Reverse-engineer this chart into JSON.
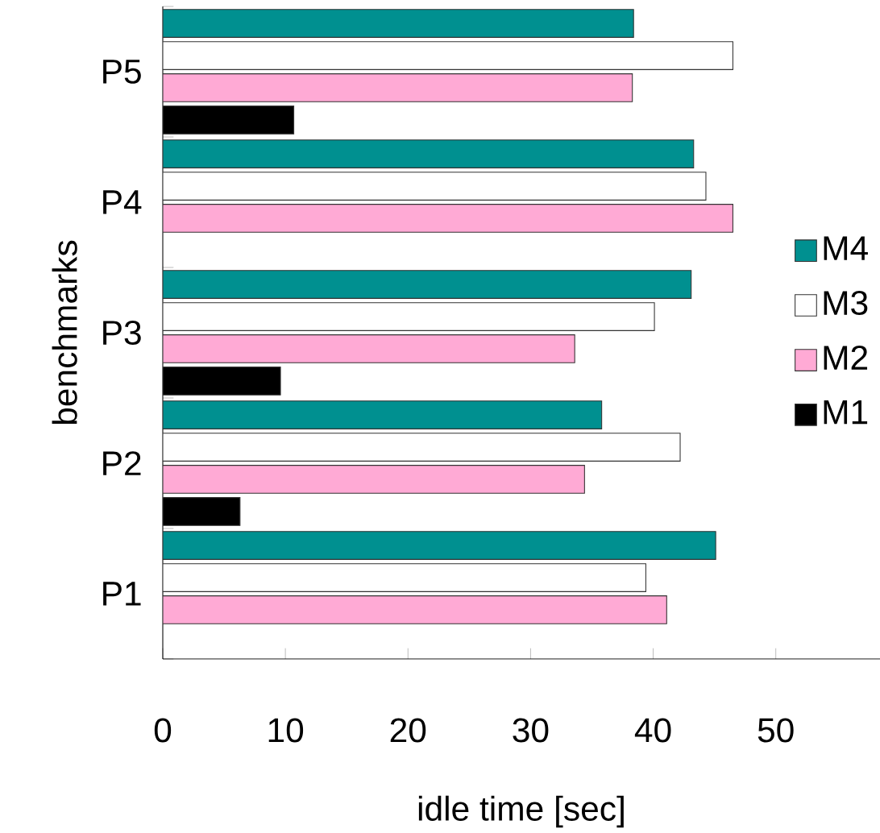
{
  "chart_data": {
    "type": "bar",
    "orientation": "horizontal",
    "xlabel": "idle time [sec]",
    "ylabel": "benchmarks",
    "categories": [
      "P5",
      "P4",
      "P3",
      "P2",
      "P1"
    ],
    "series": [
      {
        "name": "M1",
        "color": "#000000",
        "values": [
          10.7,
          null,
          9.6,
          6.3,
          null
        ]
      },
      {
        "name": "M2",
        "color": "#ffaad5",
        "values": [
          38.3,
          46.5,
          33.6,
          34.4,
          41.1
        ]
      },
      {
        "name": "M3",
        "color": "#ffffff",
        "values": [
          46.5,
          44.3,
          40.1,
          42.2,
          39.4
        ]
      },
      {
        "name": "M4",
        "color": "#009090",
        "values": [
          38.4,
          43.3,
          43.1,
          35.8,
          45.1
        ]
      }
    ],
    "xlim": [
      0,
      58.5
    ],
    "xticks": [
      0,
      10,
      20,
      30,
      40,
      50
    ],
    "legend": "right",
    "grid": false
  }
}
